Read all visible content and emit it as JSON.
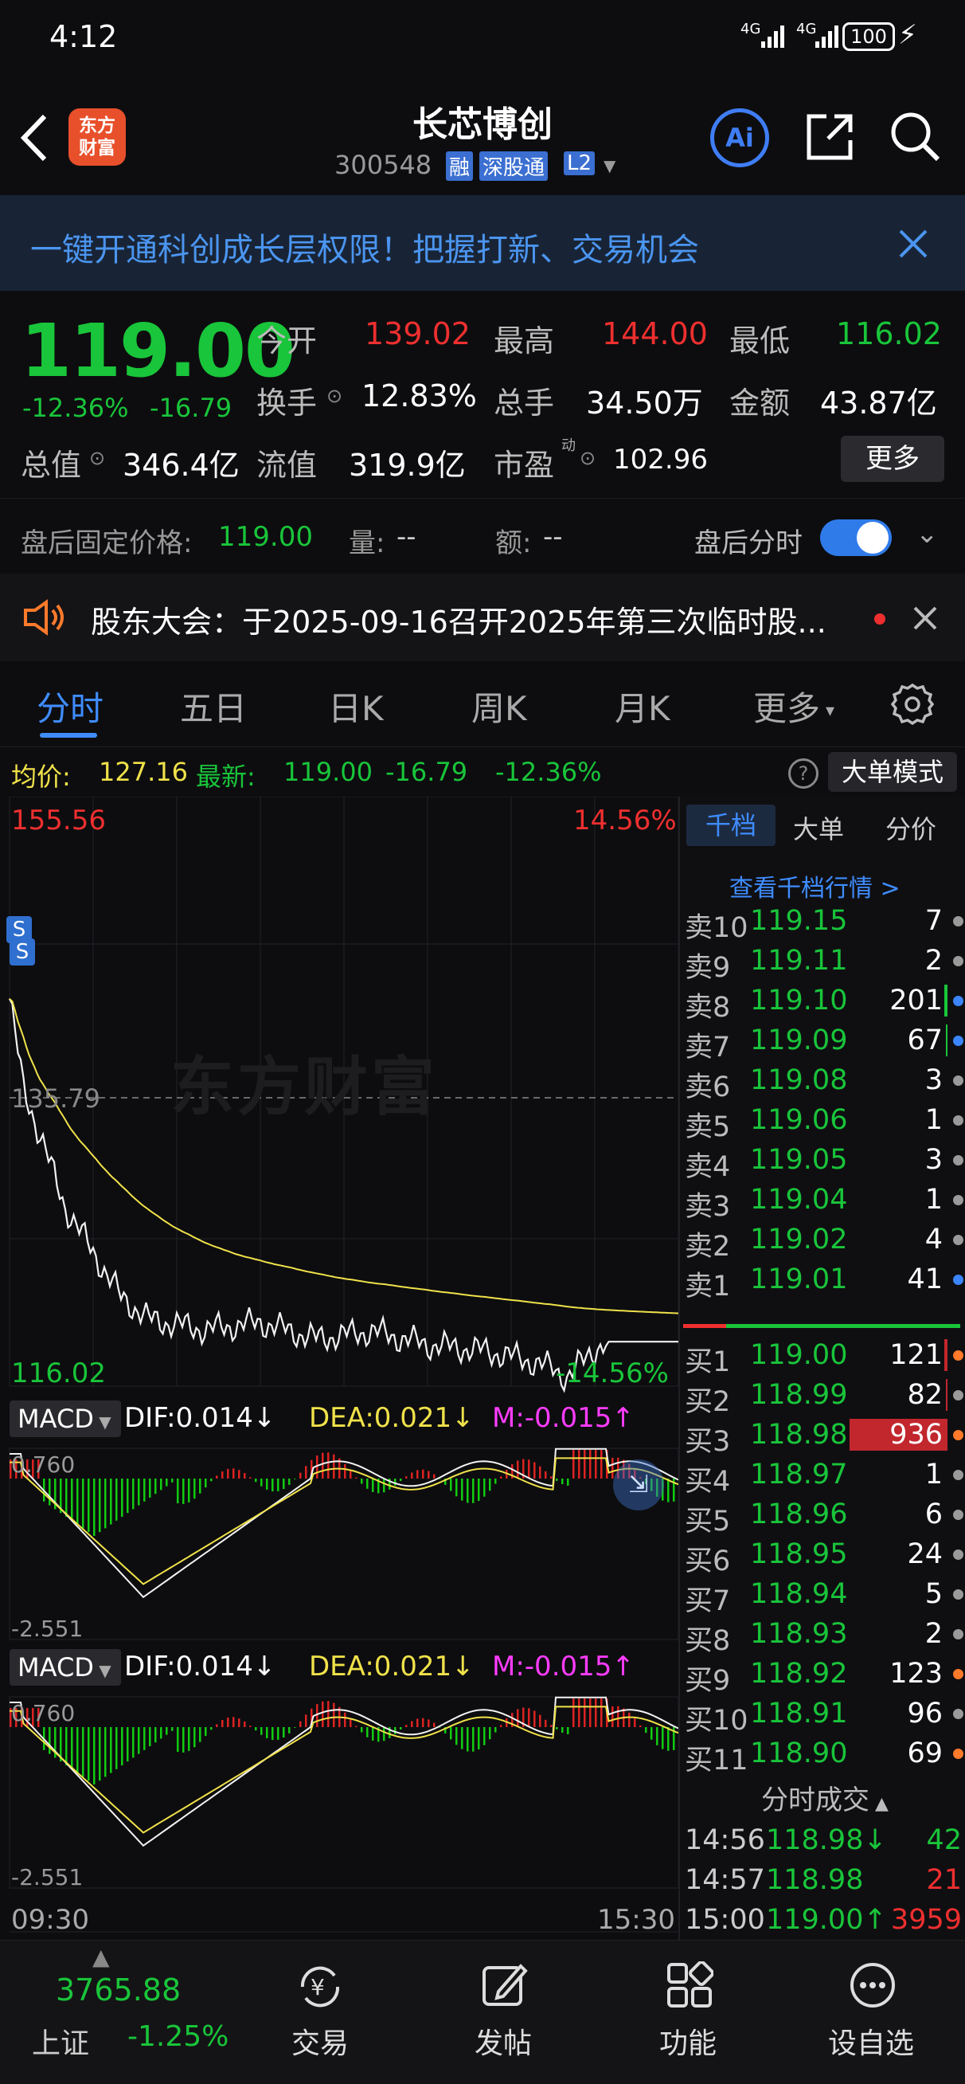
{
  "status_bar": {
    "time": "4:12",
    "signal_1": "4G",
    "signal_2": "4G",
    "battery": "100"
  },
  "nav": {
    "title": "长芯博创",
    "code": "300548",
    "badge_rong": "融",
    "badge_sgt": "深股通",
    "badge_l2": "L2",
    "logo_line1": "东方",
    "logo_line2": "财富",
    "ai_label": "Ai"
  },
  "banner": {
    "text": "一键开通科创成长层权限！把握打新、交易机会"
  },
  "quote": {
    "price": "119.00",
    "change_pct": "-12.36%",
    "change": "-16.79",
    "open_label": "今开",
    "open": "139.02",
    "high_label": "最高",
    "high": "144.00",
    "low_label": "最低",
    "low": "116.02",
    "turnover_label": "换手",
    "turnover": "12.83%",
    "volume_label": "总手",
    "volume": "34.50万",
    "amount_label": "金额",
    "amount": "43.87亿",
    "mktcap_label": "总值",
    "mktcap": "346.4亿",
    "float_label": "流值",
    "float": "319.9亿",
    "pe_label": "市盈",
    "pe_sup": "动",
    "pe": "102.96",
    "more_label": "更多"
  },
  "after_hours": {
    "price_label": "盘后固定价格:",
    "price": "119.00",
    "vol_label": "量:",
    "vol": "--",
    "amt_label": "额:",
    "amt": "--",
    "toggle_label": "盘后分时"
  },
  "notice": {
    "text": "股东大会：于2025-09-16召开2025年第三次临时股..."
  },
  "tabs": [
    "分时",
    "五日",
    "日K",
    "周K",
    "月K",
    "更多"
  ],
  "info_bar": {
    "avg_label": "均价:",
    "avg": "127.16",
    "latest_label": "最新:",
    "latest": "119.00",
    "chg": "-16.79",
    "pct": "-12.36%",
    "big_order_label": "大单模式",
    "help": "?"
  },
  "chart": {
    "top_price": "155.56",
    "top_pct": "14.56%",
    "mid_price": "135.79",
    "low_price": "116.02",
    "low_pct": "-14.56%",
    "watermark": "东方财富",
    "time_start": "09:30",
    "time_end": "15:30",
    "signal_marker": "S"
  },
  "macd": {
    "label": "MACD",
    "dif": "DIF:0.014↓",
    "dea": "DEA:0.021↓",
    "m": "M:-0.015↑",
    "top": "0.760",
    "bottom": "-2.551"
  },
  "orderbook": {
    "tabs": [
      "千档",
      "大单",
      "分价"
    ],
    "link": "查看千档行情 >",
    "sells": [
      {
        "label": "卖10",
        "price": "119.15",
        "vol": "7",
        "dot": "#9a9a9a",
        "bar": 0
      },
      {
        "label": "卖9",
        "price": "119.11",
        "vol": "2",
        "dot": "#9a9a9a",
        "bar": 0
      },
      {
        "label": "卖8",
        "price": "119.10",
        "vol": "201",
        "dot": "#3b86ff",
        "bar": 0.02
      },
      {
        "label": "卖7",
        "price": "119.09",
        "vol": "67",
        "dot": "#3b86ff",
        "bar": 0.01
      },
      {
        "label": "卖6",
        "price": "119.08",
        "vol": "3",
        "dot": "#9a9a9a",
        "bar": 0
      },
      {
        "label": "卖5",
        "price": "119.06",
        "vol": "1",
        "dot": "#9a9a9a",
        "bar": 0
      },
      {
        "label": "卖4",
        "price": "119.05",
        "vol": "3",
        "dot": "#9a9a9a",
        "bar": 0
      },
      {
        "label": "卖3",
        "price": "119.04",
        "vol": "1",
        "dot": "#9a9a9a",
        "bar": 0
      },
      {
        "label": "卖2",
        "price": "119.02",
        "vol": "4",
        "dot": "#9a9a9a",
        "bar": 0
      },
      {
        "label": "卖1",
        "price": "119.01",
        "vol": "41",
        "dot": "#3b86ff",
        "bar": 0
      }
    ],
    "buys": [
      {
        "label": "买1",
        "price": "119.00",
        "vol": "121",
        "dot": "#ff7a2b",
        "bar": 0.02
      },
      {
        "label": "买2",
        "price": "118.99",
        "vol": "82",
        "dot": "#9a9a9a",
        "bar": 0.01
      },
      {
        "label": "买3",
        "price": "118.98",
        "vol": "936",
        "dot": "#ff7a2b",
        "bar": 0.56
      },
      {
        "label": "买4",
        "price": "118.97",
        "vol": "1",
        "dot": "#9a9a9a",
        "bar": 0
      },
      {
        "label": "买5",
        "price": "118.96",
        "vol": "6",
        "dot": "#9a9a9a",
        "bar": 0
      },
      {
        "label": "买6",
        "price": "118.95",
        "vol": "24",
        "dot": "#9a9a9a",
        "bar": 0
      },
      {
        "label": "买7",
        "price": "118.94",
        "vol": "5",
        "dot": "#9a9a9a",
        "bar": 0
      },
      {
        "label": "买8",
        "price": "118.93",
        "vol": "2",
        "dot": "#9a9a9a",
        "bar": 0
      },
      {
        "label": "买9",
        "price": "118.92",
        "vol": "123",
        "dot": "#ff7a2b",
        "bar": 0
      },
      {
        "label": "买10",
        "price": "118.91",
        "vol": "96",
        "dot": "#9a9a9a",
        "bar": 0
      },
      {
        "label": "买11",
        "price": "118.90",
        "vol": "69",
        "dot": "#ff7a2b",
        "bar": 0
      }
    ],
    "trades_title": "分时成交",
    "trades": [
      {
        "time": "14:56",
        "price": "118.98↓",
        "vol": "42",
        "color": "#19c53a",
        "vcolor": "#19c53a"
      },
      {
        "time": "14:57",
        "price": "118.98",
        "vol": "21",
        "color": "#19c53a",
        "vcolor": "#ef2f2f"
      },
      {
        "time": "15:00",
        "price": "119.00↑",
        "vol": "3959",
        "color": "#19c53a",
        "vcolor": "#ef2f2f"
      }
    ]
  },
  "bottom_nav": {
    "index_value": "3765.88",
    "index_name": "上证",
    "index_pct": "-1.25%",
    "trade": "交易",
    "post": "发帖",
    "func": "功能",
    "watch": "设自选"
  }
}
